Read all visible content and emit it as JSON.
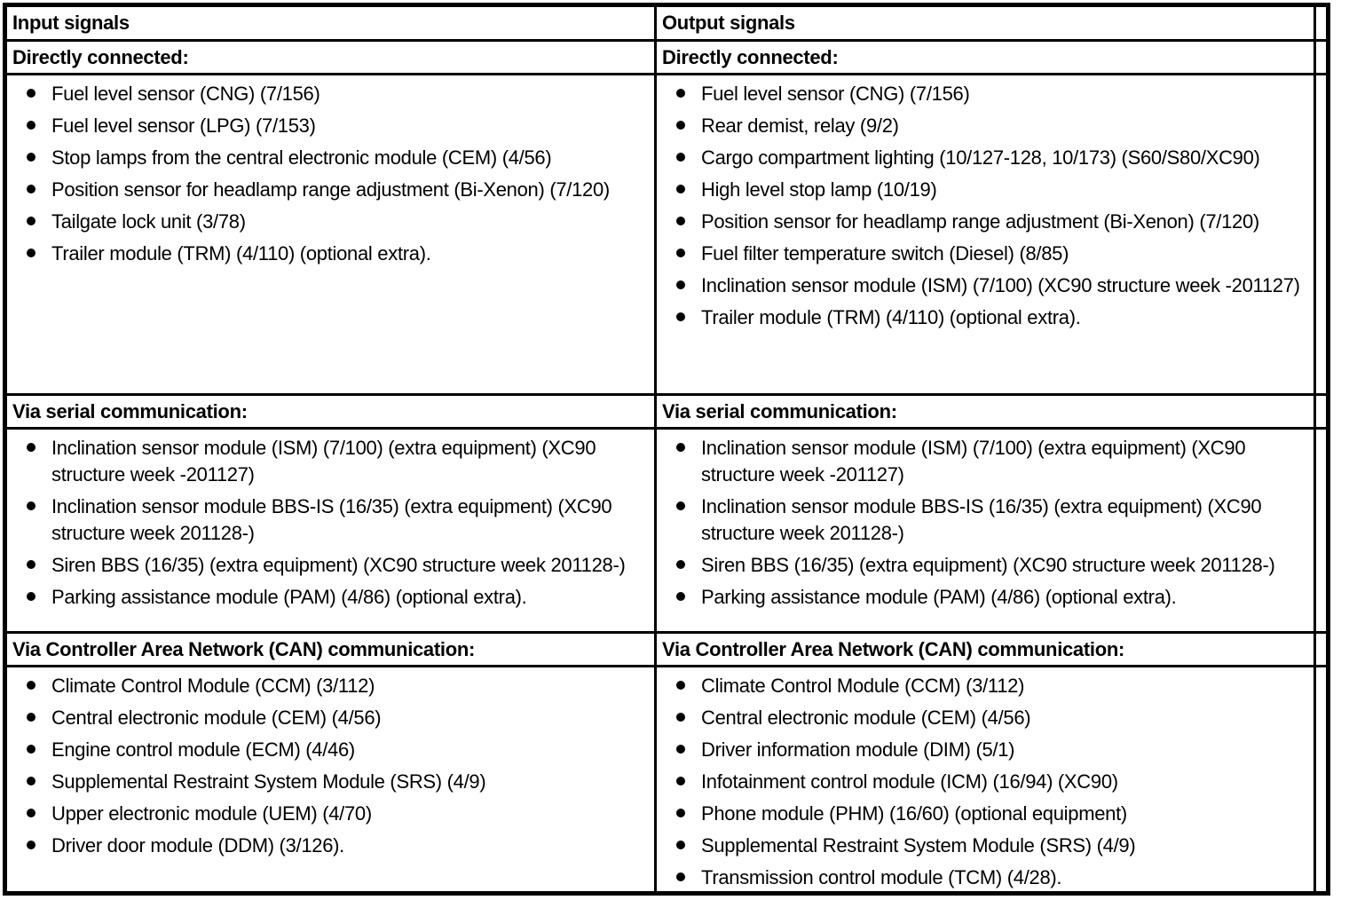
{
  "page": {
    "background_color": "#ffffff",
    "border_color": "#000000",
    "text_color": "#000000"
  },
  "table": {
    "columns": [
      {
        "header": "Input signals",
        "sections": [
          {
            "title": "Directly connected:",
            "items": [
              "Fuel level sensor (CNG) (7/156)",
              "Fuel level sensor (LPG) (7/153)",
              "Stop lamps from the central electronic module (CEM) (4/56)",
              "Position sensor for headlamp range adjustment (Bi-Xenon) (7/120)",
              "Tailgate lock unit (3/78)",
              "Trailer module (TRM) (4/110) (optional extra)."
            ]
          },
          {
            "title": "Via serial communication:",
            "items": [
              "Inclination sensor module (ISM) (7/100) (extra equipment) (XC90 structure week -201127)",
              "Inclination sensor module BBS-IS (16/35) (extra equipment) (XC90 structure week 201128-)",
              "Siren BBS (16/35) (extra equipment) (XC90 structure week 201128-)",
              "Parking assistance module (PAM) (4/86) (optional extra)."
            ]
          },
          {
            "title": "Via Controller Area Network (CAN) communication:",
            "items": [
              "Climate Control Module (CCM) (3/112)",
              "Central electronic module (CEM) (4/56)",
              "Engine control module (ECM) (4/46)",
              "Supplemental Restraint System Module (SRS) (4/9)",
              "Upper electronic module (UEM) (4/70)",
              "Driver door module (DDM) (3/126)."
            ]
          }
        ]
      },
      {
        "header": "Output signals",
        "sections": [
          {
            "title": "Directly connected:",
            "items": [
              "Fuel level sensor (CNG) (7/156)",
              "Rear demist, relay (9/2)",
              "Cargo compartment lighting (10/127-128, 10/173) (S60/S80/XC90)",
              "High level stop lamp (10/19)",
              "Position sensor for headlamp range adjustment (Bi-Xenon) (7/120)",
              "Fuel filter temperature switch (Diesel) (8/85)",
              "Inclination sensor module (ISM) (7/100) (XC90 structure week -201127)",
              "Trailer module (TRM) (4/110) (optional extra)."
            ]
          },
          {
            "title": "Via serial communication:",
            "items": [
              "Inclination sensor module (ISM) (7/100) (extra equipment) (XC90 structure week -201127)",
              "Inclination sensor module BBS-IS (16/35) (extra equipment) (XC90 structure week 201128-)",
              "Siren BBS (16/35) (extra equipment) (XC90 structure week 201128-)",
              "Parking assistance module (PAM) (4/86) (optional extra)."
            ]
          },
          {
            "title": "Via Controller Area Network (CAN) communication:",
            "items": [
              "Climate Control Module (CCM) (3/112)",
              "Central electronic module (CEM) (4/56)",
              "Driver information module (DIM) (5/1)",
              "Infotainment control module (ICM) (16/94) (XC90)",
              "Phone module (PHM) (16/60) (optional equipment)",
              "Supplemental Restraint System Module (SRS) (4/9)",
              "Transmission control module (TCM) (4/28)."
            ]
          }
        ]
      }
    ]
  }
}
